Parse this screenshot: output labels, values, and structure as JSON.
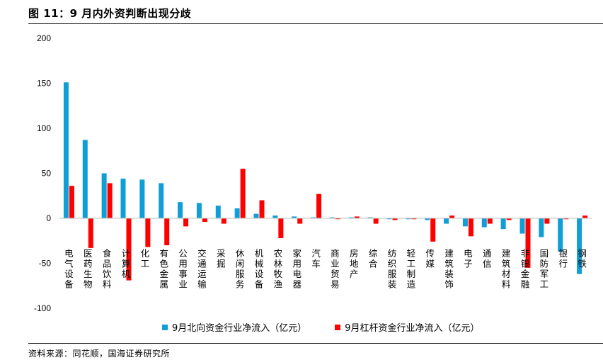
{
  "figure": {
    "title": "图 11：9 月内外资判断出现分歧",
    "source": "资料来源：同花顺，国海证券研究所"
  },
  "chart_data": {
    "type": "bar",
    "categories": [
      "电气设备",
      "医药生物",
      "食品饮料",
      "计算机",
      "化工",
      "有色金属",
      "公用事业",
      "交通运输",
      "采掘",
      "休闲服务",
      "机械设备",
      "农林牧渔",
      "家用电器",
      "汽车",
      "商业贸易",
      "房地产",
      "综合",
      "纺织服装",
      "轻工制造",
      "传媒",
      "建筑装饰",
      "电子",
      "通信",
      "建筑材料",
      "非银金融",
      "国防军工",
      "银行",
      "钢铁"
    ],
    "series": [
      {
        "name": "9月北向资金行业净流入（亿元）",
        "color": "#0f9ed5",
        "values": [
          151,
          87,
          50,
          44,
          43,
          39,
          18,
          17,
          14,
          11,
          5,
          3,
          2,
          1,
          1,
          1,
          1,
          -1,
          -1,
          -2,
          -6,
          -9,
          -10,
          -12,
          -17,
          -21,
          -37,
          -62
        ]
      },
      {
        "name": "9月杠杆资金行业净流入（亿元）",
        "color": "#ff0000",
        "values": [
          36,
          -33,
          39,
          -69,
          -32,
          -30,
          -9,
          -4,
          -6,
          55,
          20,
          -22,
          -6,
          27,
          -1,
          2,
          -6,
          -2,
          -1,
          -26,
          3,
          -20,
          -6,
          -2,
          -55,
          -6,
          -1,
          3
        ]
      }
    ],
    "ylim": [
      -100,
      200
    ],
    "yticks": [
      "200",
      "150",
      "100",
      "50",
      "0",
      "-50",
      "-100"
    ],
    "grid": false,
    "legend_position": "bottom"
  }
}
